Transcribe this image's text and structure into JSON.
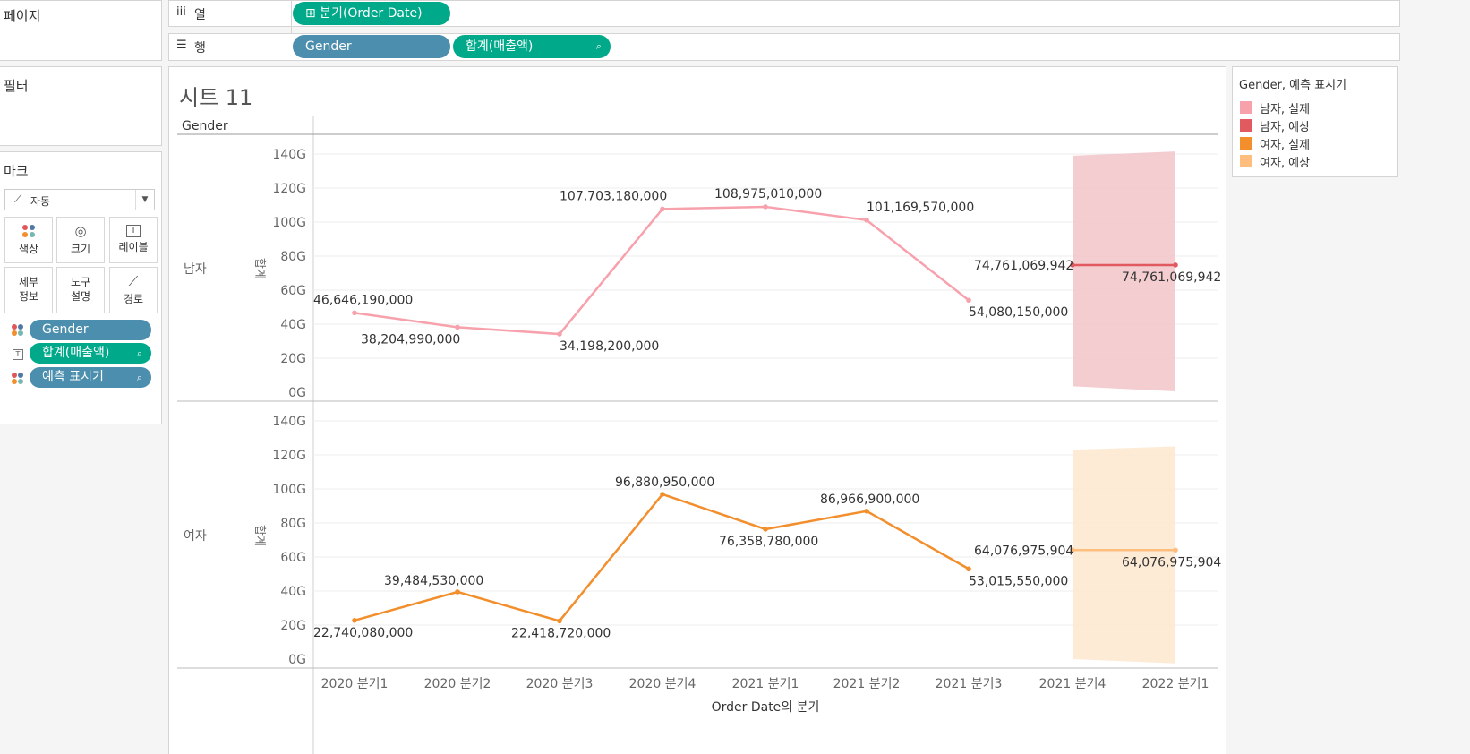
{
  "shelves": {
    "pages_label": "페이지",
    "columns_label": "열",
    "rows_label": "행",
    "columns_pill": "⊞ 분기(Order Date)",
    "rows_pills": [
      "Gender",
      "합계(매출액)"
    ]
  },
  "filters_label": "필터",
  "marks": {
    "title": "마크",
    "type": "자동",
    "buttons": [
      "색상",
      "크기",
      "레이블",
      "세부\n정보",
      "도구\n설명",
      "경로"
    ],
    "pills": [
      "Gender",
      "합계(매출액)",
      "예측 표시기"
    ]
  },
  "sheet_title": "시트 11",
  "legend": {
    "title": "Gender, 예측 표시기",
    "items": [
      {
        "label": "남자, 실제",
        "color": "#f7a1ac"
      },
      {
        "label": "남자, 예상",
        "color": "#e05a5f"
      },
      {
        "label": "여자, 실제",
        "color": "#f28e2b"
      },
      {
        "label": "여자, 예상",
        "color": "#ffbe7d"
      }
    ]
  },
  "chart_data": {
    "type": "line",
    "row_header": "Gender",
    "xlabel": "Order Date의 분기",
    "ylabel": "합계",
    "categories": [
      "2020 분기1",
      "2020 분기2",
      "2020 분기3",
      "2020 분기4",
      "2021 분기1",
      "2021 분기2",
      "2021 분기3",
      "2021 분기4",
      "2022 분기1"
    ],
    "yticks": [
      "0G",
      "20G",
      "40G",
      "60G",
      "80G",
      "100G",
      "120G",
      "140G"
    ],
    "ylim": [
      0,
      140
    ],
    "panels": [
      {
        "name": "남자",
        "actual": [
          46.64619,
          38.20499,
          34.1982,
          107.70318,
          108.97501,
          101.16957,
          54.08015,
          null,
          null
        ],
        "actual_labels": [
          "46,646,190,000",
          "38,204,990,000",
          "34,198,200,000",
          "107,703,180,000",
          "108,975,010,000",
          "101,169,570,000",
          "54,080,150,000",
          "",
          ""
        ],
        "forecast": [
          null,
          null,
          null,
          null,
          null,
          null,
          null,
          74.761069942,
          74.761069942
        ],
        "forecast_labels": [
          "",
          "",
          "",
          "",
          "",
          "",
          "",
          "74,761,069,942",
          "74,761,069,942"
        ],
        "band": [
          [
            7,
            3.5,
            139
          ],
          [
            8,
            0.5,
            141.5
          ]
        ],
        "actual_color": "#f7a1ac",
        "forecast_color": "#e05a5f",
        "band_color": "#f2c4c8"
      },
      {
        "name": "여자",
        "actual": [
          22.74008,
          39.48453,
          22.41872,
          96.88095,
          76.35878,
          86.9669,
          53.01555,
          null,
          null
        ],
        "actual_labels": [
          "22,740,080,000",
          "39,484,530,000",
          "22,418,720,000",
          "96,880,950,000",
          "76,358,780,000",
          "86,966,900,000",
          "53,015,550,000",
          "",
          ""
        ],
        "forecast": [
          null,
          null,
          null,
          null,
          null,
          null,
          null,
          64.076975904,
          64.076975904
        ],
        "forecast_labels": [
          "",
          "",
          "",
          "",
          "",
          "",
          "",
          "64,076,975,904",
          "64,076,975,904"
        ],
        "band": [
          [
            7,
            0,
            123
          ],
          [
            8,
            -2.5,
            125
          ]
        ],
        "actual_color": "#f28e2b",
        "forecast_color": "#ffbe7d",
        "band_color": "#fde7cf"
      }
    ]
  }
}
